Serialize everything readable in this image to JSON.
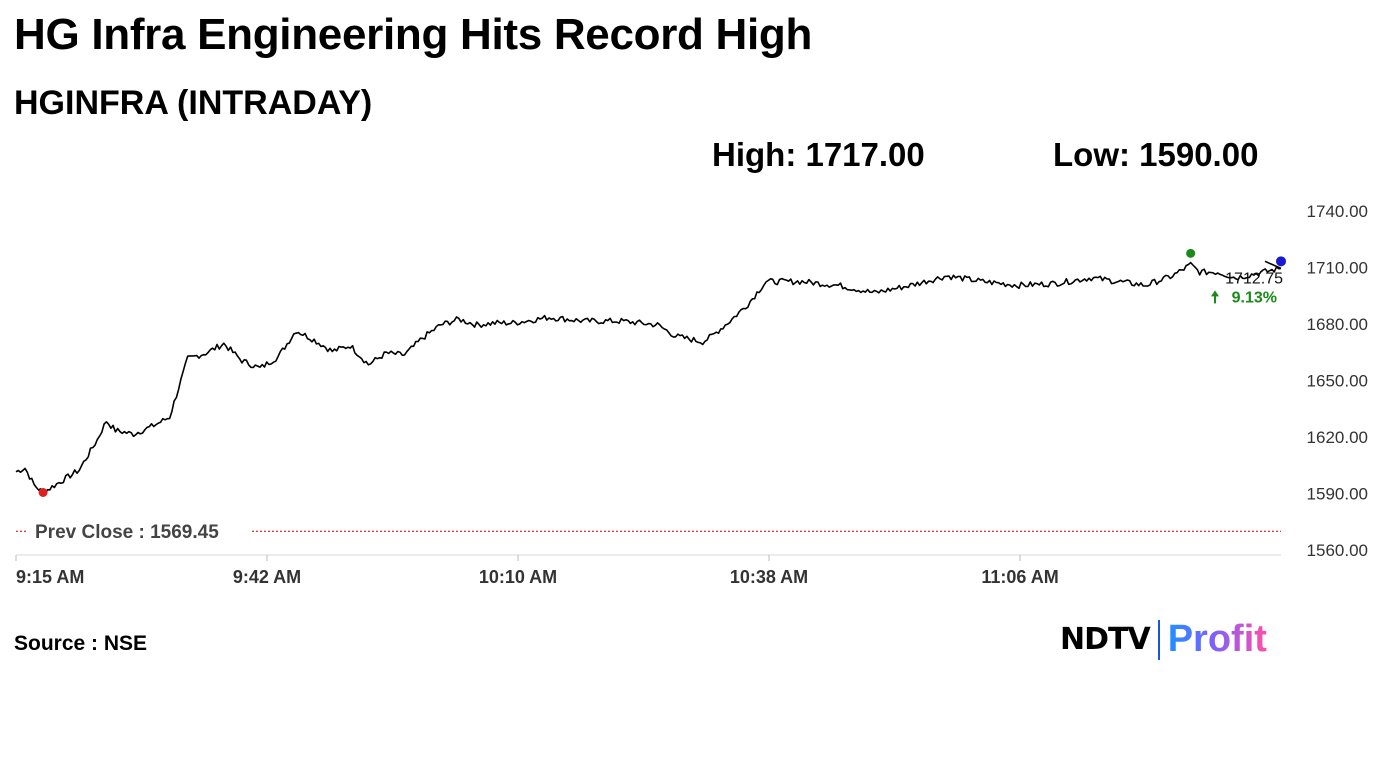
{
  "header": {
    "headline": "HG Infra Engineering Hits Record High",
    "subtitle": "HGINFRA (INTRADAY)",
    "high_label": "High: 1717.00",
    "low_label": "Low: 1590.00"
  },
  "footer": {
    "source": "Source : NSE",
    "logo_left": "NDTV",
    "logo_right": "Profit"
  },
  "chart_data": {
    "type": "line",
    "title": "",
    "xlabel": "",
    "ylabel": "",
    "x_ticks": [
      "9:15 AM",
      "9:42 AM",
      "10:10 AM",
      "10:38 AM",
      "11:06 AM"
    ],
    "y_ticks": [
      "1740.00",
      "1710.00",
      "1680.00",
      "1650.00",
      "1620.00",
      "1590.00",
      "1560.00"
    ],
    "ylim": [
      1560,
      1740
    ],
    "xlim_minutes_after_open": [
      0,
      140
    ],
    "grid": false,
    "prev_close_label": "Prev Close : 1569.45",
    "prev_close": 1569.45,
    "last_price": "1712.75",
    "change_pct": "9.13%",
    "colors": {
      "line": "#000000",
      "prev_close": "#cc0000",
      "high_marker": "#1a8a1a",
      "low_marker": "#e02020",
      "last_marker": "#1a1acc",
      "change_up": "#1a8a1a",
      "axis_text": "#333333"
    },
    "series": [
      {
        "x": [
          "9:15",
          "9:16",
          "9:17",
          "9:18",
          "9:20",
          "9:22",
          "9:24",
          "9:25",
          "9:26",
          "9:28",
          "9:30",
          "9:32",
          "9:34",
          "9:36",
          "9:38",
          "9:40",
          "9:42",
          "9:44",
          "9:46",
          "9:48",
          "9:50",
          "9:52",
          "9:54",
          "9:56",
          "9:58",
          "10:00",
          "10:02",
          "10:04",
          "10:06",
          "10:08",
          "10:10",
          "10:14",
          "10:18",
          "10:22",
          "10:26",
          "10:28",
          "10:30",
          "10:31",
          "10:32",
          "10:34",
          "10:36",
          "10:38",
          "10:42",
          "10:46",
          "10:50",
          "10:54",
          "10:58",
          "11:02",
          "11:06",
          "11:10",
          "11:14",
          "11:17",
          "11:20",
          "11:23",
          "11:25",
          "11:26",
          "11:28",
          "11:30",
          "11:35"
        ],
        "values": [
          1601,
          1603,
          1594,
          1590,
          1596,
          1602,
          1618,
          1628,
          1623,
          1621,
          1625,
          1630,
          1661,
          1664,
          1669,
          1660,
          1656,
          1662,
          1676,
          1671,
          1665,
          1668,
          1658,
          1664,
          1663,
          1672,
          1679,
          1682,
          1679,
          1680,
          1680,
          1683,
          1681,
          1681,
          1679,
          1673,
          1671,
          1670,
          1673,
          1681,
          1690,
          1702,
          1702,
          1700,
          1696,
          1700,
          1705,
          1702,
          1700,
          1701,
          1704,
          1702,
          1700,
          1705,
          1711,
          1707,
          1707,
          1704,
          1709
        ]
      }
    ],
    "markers": {
      "high": {
        "x": "11:25",
        "y": 1717.0
      },
      "low": {
        "x": "9:18",
        "y": 1590.0
      },
      "last": {
        "x": "11:35",
        "y": 1712.75
      }
    }
  }
}
